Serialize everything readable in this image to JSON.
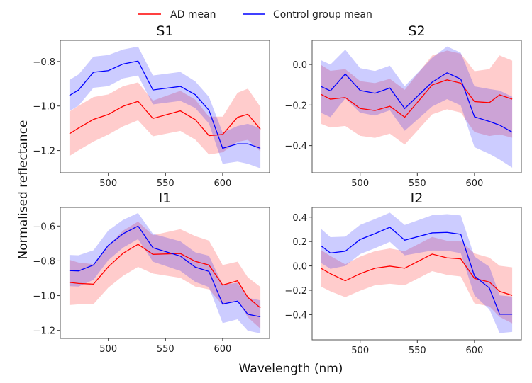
{
  "legend": {
    "placement": "top-center",
    "entries": [
      {
        "label": "AD mean",
        "color": "#ff0000"
      },
      {
        "label": "Control group mean",
        "color": "#0000ff"
      }
    ]
  },
  "xlabel": "Wavelength (nm)",
  "ylabel": "Normalised reflectance",
  "chart_data": [
    {
      "type": "line",
      "title": "S1",
      "x": [
        466,
        474,
        487,
        500,
        513,
        526,
        539,
        563,
        576,
        588,
        600,
        613,
        622,
        633
      ],
      "xlim": [
        458,
        641
      ],
      "xticks": [
        500,
        550,
        600
      ],
      "ylim": [
        -1.3,
        -0.705
      ],
      "yticks": [
        -1.2,
        -1.0,
        -0.8
      ],
      "series": [
        {
          "name": "AD mean",
          "color": "#ff0000",
          "values": [
            -1.125,
            -1.099,
            -1.06,
            -1.038,
            -1.001,
            -0.979,
            -1.056,
            -1.022,
            -1.061,
            -1.133,
            -1.128,
            -1.051,
            -1.037,
            -1.104
          ],
          "band": [
            0.1,
            0.1,
            0.1,
            0.09,
            0.09,
            0.085,
            0.08,
            0.09,
            0.09,
            0.085,
            0.08,
            0.11,
            0.115,
            0.1
          ]
        },
        {
          "name": "Control group mean",
          "color": "#0000ff",
          "values": [
            -0.953,
            -0.928,
            -0.848,
            -0.841,
            -0.811,
            -0.798,
            -0.928,
            -0.912,
            -0.949,
            -1.019,
            -1.19,
            -1.17,
            -1.17,
            -1.19
          ],
          "band": [
            0.07,
            0.07,
            0.07,
            0.07,
            0.065,
            0.065,
            0.065,
            0.065,
            0.06,
            0.06,
            0.07,
            0.08,
            0.09,
            0.09
          ]
        }
      ]
    },
    {
      "type": "line",
      "title": "S2",
      "x": [
        466,
        474,
        487,
        500,
        513,
        526,
        539,
        563,
        576,
        588,
        600,
        613,
        622,
        633
      ],
      "xlim": [
        458,
        641
      ],
      "xticks": [
        500,
        550,
        600
      ],
      "ylim": [
        -0.534,
        0.119
      ],
      "yticks": [
        -0.4,
        -0.2,
        0.0
      ],
      "series": [
        {
          "name": "AD mean",
          "color": "#ff0000",
          "values": [
            -0.148,
            -0.171,
            -0.163,
            -0.217,
            -0.227,
            -0.206,
            -0.26,
            -0.101,
            -0.076,
            -0.092,
            -0.183,
            -0.188,
            -0.15,
            -0.171
          ],
          "band": [
            0.145,
            0.14,
            0.14,
            0.135,
            0.135,
            0.135,
            0.135,
            0.145,
            0.145,
            0.145,
            0.15,
            0.165,
            0.195,
            0.19
          ]
        },
        {
          "name": "Control group mean",
          "color": "#0000ff",
          "values": [
            -0.109,
            -0.13,
            -0.047,
            -0.128,
            -0.142,
            -0.116,
            -0.217,
            -0.087,
            -0.041,
            -0.072,
            -0.258,
            -0.281,
            -0.299,
            -0.334
          ],
          "band": [
            0.13,
            0.13,
            0.12,
            0.11,
            0.11,
            0.11,
            0.11,
            0.12,
            0.13,
            0.13,
            0.15,
            0.16,
            0.17,
            0.175
          ]
        }
      ]
    },
    {
      "type": "line",
      "title": "I1",
      "x": [
        466,
        474,
        487,
        500,
        513,
        526,
        539,
        563,
        576,
        588,
        600,
        613,
        622,
        633
      ],
      "xlim": [
        458,
        641
      ],
      "xticks": [
        500,
        550,
        600
      ],
      "ylim": [
        -1.246,
        -0.493
      ],
      "yticks": [
        -1.2,
        -1.0,
        -0.8,
        -0.6
      ],
      "series": [
        {
          "name": "AD mean",
          "color": "#ff0000",
          "values": [
            -0.924,
            -0.93,
            -0.934,
            -0.834,
            -0.756,
            -0.705,
            -0.763,
            -0.758,
            -0.803,
            -0.824,
            -0.939,
            -0.915,
            -1.01,
            -1.07
          ],
          "band": [
            0.13,
            0.12,
            0.115,
            0.12,
            0.13,
            0.13,
            0.11,
            0.14,
            0.145,
            0.14,
            0.115,
            0.11,
            0.115,
            0.12
          ]
        },
        {
          "name": "Control group mean",
          "color": "#0000ff",
          "values": [
            -0.856,
            -0.858,
            -0.824,
            -0.711,
            -0.644,
            -0.6,
            -0.725,
            -0.773,
            -0.836,
            -0.861,
            -1.048,
            -1.031,
            -1.107,
            -1.122
          ],
          "band": [
            0.09,
            0.09,
            0.085,
            0.085,
            0.08,
            0.075,
            0.08,
            0.085,
            0.085,
            0.09,
            0.11,
            0.105,
            0.095,
            0.095
          ]
        }
      ]
    },
    {
      "type": "line",
      "title": "I2",
      "x": [
        466,
        474,
        487,
        500,
        513,
        526,
        539,
        563,
        576,
        588,
        600,
        613,
        622,
        633
      ],
      "xlim": [
        458,
        641
      ],
      "xticks": [
        500,
        550,
        600
      ],
      "ylim": [
        -0.607,
        0.48
      ],
      "yticks": [
        -0.4,
        -0.2,
        0.0,
        0.2,
        0.4
      ],
      "series": [
        {
          "name": "AD mean",
          "color": "#ff0000",
          "values": [
            -0.021,
            -0.064,
            -0.122,
            -0.064,
            -0.019,
            -0.002,
            -0.019,
            0.097,
            0.066,
            0.058,
            -0.103,
            -0.132,
            -0.209,
            -0.242
          ],
          "band": [
            0.15,
            0.145,
            0.135,
            0.14,
            0.14,
            0.145,
            0.14,
            0.14,
            0.14,
            0.145,
            0.205,
            0.2,
            0.21,
            0.23
          ]
        },
        {
          "name": "Control group mean",
          "color": "#0000ff",
          "values": [
            0.163,
            0.106,
            0.12,
            0.217,
            0.265,
            0.317,
            0.211,
            0.271,
            0.275,
            0.259,
            -0.083,
            -0.181,
            -0.397,
            -0.397
          ],
          "band": [
            0.14,
            0.13,
            0.12,
            0.12,
            0.12,
            0.12,
            0.125,
            0.145,
            0.15,
            0.155,
            0.16,
            0.175,
            0.155,
            0.145
          ]
        }
      ]
    }
  ]
}
